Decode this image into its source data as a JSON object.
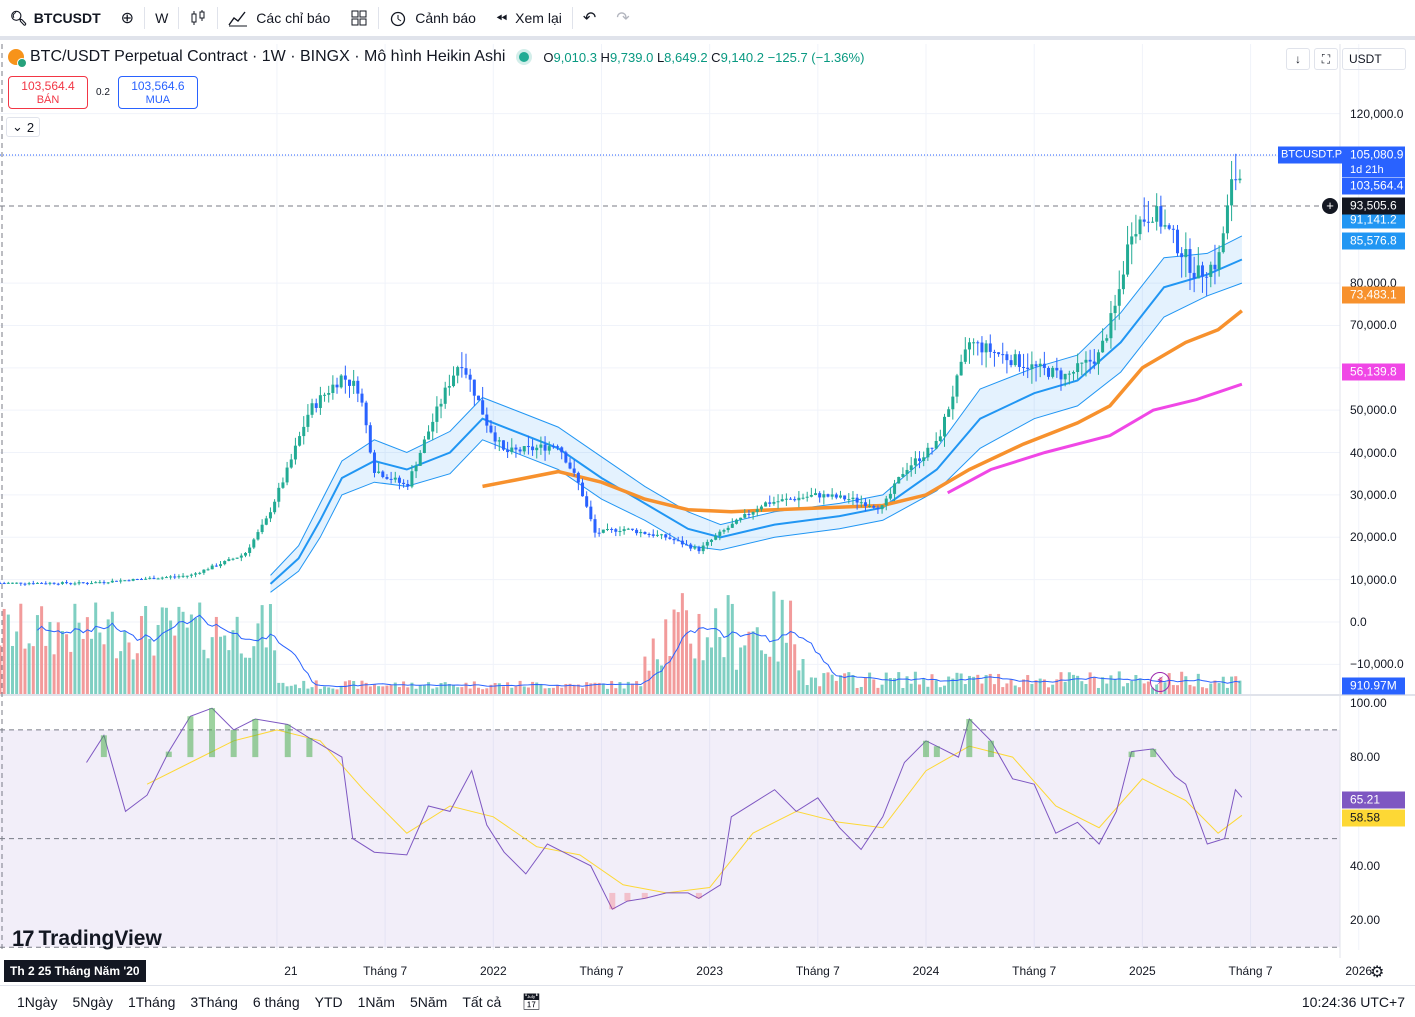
{
  "toolbar": {
    "symbol": "BTCUSDT",
    "interval": "W",
    "indicators_label": "Các chỉ báo",
    "alert_label": "Cảnh báo",
    "replay_label": "Xem lại"
  },
  "legend": {
    "title": "BTC/USDT Perpetual Contract · 1W · BINGX · Mô hình Heikin Ashi",
    "o_label": "O",
    "o_value": "9,010.3",
    "h_label": "H",
    "h_value": "9,739.0",
    "l_label": "L",
    "l_value": "8,649.2",
    "c_label": "C",
    "c_value": "9,140.2",
    "change": "−125.7 (−1.36%)",
    "bid_price": "103,564.4",
    "bid_label": "BÁN",
    "spread": "0.2",
    "ask_price": "103,564.6",
    "ask_label": "MUA",
    "collapse_count": "2",
    "currency": "USDT"
  },
  "price_labels": {
    "symbol_tag": "BTCUSDT.P",
    "last_price": "105,080.9",
    "countdown": "1d 21h",
    "bid_line": "103,564.4",
    "crosshair": "93,505.6",
    "bb_upper": "91,141.2",
    "bb_mid": "85,576.8",
    "ma_orange": "73,483.1",
    "ma_pink": "56,139.8",
    "volume": "910.97M",
    "rsi": "65.21",
    "rsi_ma": "58.58"
  },
  "colors": {
    "up": "#22ab94",
    "down": "#2962ff",
    "bb_band": "#2196f3",
    "ma_orange": "#f7912d",
    "ma_pink": "#f047e6",
    "rsi_line": "#7e57c2",
    "rsi_ma": "#fdd835",
    "vol_up": "#7fcfc2",
    "vol_down": "#f29b9b"
  },
  "chart_data": [
    {
      "type": "candlestick",
      "title": "BTC/USDT Perpetual Contract · 1W · BINGX · Mô hình Heikin Ashi",
      "y_ticks": [
        "120,000.0",
        "110,000.0",
        "80,000.0",
        "70,000.0",
        "60,000.0",
        "50,000.0",
        "40,000.0",
        "30,000.0",
        "20,000.0",
        "10,000.0",
        "0.0",
        "−10,000.0"
      ],
      "y_tick_values": [
        120000,
        110000,
        80000,
        70000,
        60000,
        50000,
        40000,
        30000,
        20000,
        10000,
        0,
        -10000
      ],
      "ylim": [
        -17000,
        127000
      ],
      "x_ticks": [
        "21",
        "Tháng 7",
        "2022",
        "Tháng 7",
        "2023",
        "Tháng 7",
        "2024",
        "Tháng 7",
        "2025",
        "Tháng 7",
        "2026"
      ],
      "x_tick_values": [
        2021.0,
        2021.5,
        2022.0,
        2022.5,
        2023.0,
        2023.5,
        2024.0,
        2024.5,
        2025.0,
        2025.5,
        2026.0
      ],
      "xlim": [
        2019.72,
        2026.26
      ],
      "price_path": [
        [
          2020.12,
          9200
        ],
        [
          2020.6,
          11000
        ],
        [
          2020.85,
          16000
        ],
        [
          2020.95,
          24000
        ],
        [
          2021.05,
          36000
        ],
        [
          2021.15,
          50000
        ],
        [
          2021.3,
          58000
        ],
        [
          2021.38,
          55000
        ],
        [
          2021.45,
          36000
        ],
        [
          2021.6,
          32000
        ],
        [
          2021.7,
          45000
        ],
        [
          2021.8,
          57000
        ],
        [
          2021.85,
          62000
        ],
        [
          2021.9,
          56000
        ],
        [
          2021.97,
          47000
        ],
        [
          2022.05,
          40000
        ],
        [
          2022.2,
          41000
        ],
        [
          2022.3,
          42000
        ],
        [
          2022.4,
          32000
        ],
        [
          2022.47,
          21000
        ],
        [
          2022.6,
          22000
        ],
        [
          2022.8,
          20000
        ],
        [
          2022.95,
          17000
        ],
        [
          2023.05,
          21000
        ],
        [
          2023.25,
          28000
        ],
        [
          2023.5,
          30000
        ],
        [
          2023.65,
          29000
        ],
        [
          2023.8,
          27000
        ],
        [
          2023.9,
          36000
        ],
        [
          2024.05,
          42000
        ],
        [
          2024.2,
          66000
        ],
        [
          2024.3,
          64000
        ],
        [
          2024.5,
          60000
        ],
        [
          2024.65,
          58000
        ],
        [
          2024.8,
          63000
        ],
        [
          2024.88,
          75000
        ],
        [
          2024.95,
          93000
        ],
        [
          2025.05,
          97000
        ],
        [
          2025.15,
          90000
        ],
        [
          2025.25,
          82000
        ],
        [
          2025.35,
          85000
        ],
        [
          2025.42,
          105000
        ],
        [
          2025.46,
          105080
        ]
      ],
      "bb_mid": [
        [
          2020.97,
          9000
        ],
        [
          2021.1,
          15000
        ],
        [
          2021.2,
          24000
        ],
        [
          2021.3,
          34000
        ],
        [
          2021.45,
          38000
        ],
        [
          2021.6,
          36000
        ],
        [
          2021.8,
          40000
        ],
        [
          2021.95,
          48000
        ],
        [
          2022.15,
          44000
        ],
        [
          2022.3,
          41000
        ],
        [
          2022.5,
          34000
        ],
        [
          2022.7,
          28000
        ],
        [
          2022.9,
          22000
        ],
        [
          2023.05,
          20000
        ],
        [
          2023.3,
          23000
        ],
        [
          2023.6,
          25000
        ],
        [
          2023.8,
          27000
        ],
        [
          2024.05,
          36000
        ],
        [
          2024.25,
          48000
        ],
        [
          2024.5,
          54000
        ],
        [
          2024.7,
          57000
        ],
        [
          2024.9,
          66000
        ],
        [
          2025.1,
          79000
        ],
        [
          2025.3,
          82000
        ],
        [
          2025.46,
          85576.8
        ]
      ],
      "bb_upper": [
        [
          2020.97,
          11000
        ],
        [
          2021.1,
          18000
        ],
        [
          2021.2,
          28000
        ],
        [
          2021.3,
          38000
        ],
        [
          2021.45,
          43000
        ],
        [
          2021.6,
          40000
        ],
        [
          2021.8,
          45000
        ],
        [
          2021.95,
          53000
        ],
        [
          2022.15,
          49000
        ],
        [
          2022.3,
          46000
        ],
        [
          2022.5,
          39000
        ],
        [
          2022.7,
          32000
        ],
        [
          2022.9,
          26000
        ],
        [
          2023.05,
          23000
        ],
        [
          2023.3,
          26000
        ],
        [
          2023.6,
          28000
        ],
        [
          2023.8,
          30000
        ],
        [
          2024.05,
          41000
        ],
        [
          2024.25,
          55000
        ],
        [
          2024.5,
          60000
        ],
        [
          2024.7,
          63000
        ],
        [
          2024.9,
          73000
        ],
        [
          2025.1,
          86000
        ],
        [
          2025.3,
          87000
        ],
        [
          2025.46,
          91141.2
        ]
      ],
      "bb_lower": [
        [
          2020.97,
          7000
        ],
        [
          2021.1,
          12000
        ],
        [
          2021.2,
          20000
        ],
        [
          2021.3,
          30000
        ],
        [
          2021.45,
          33000
        ],
        [
          2021.6,
          32000
        ],
        [
          2021.8,
          35000
        ],
        [
          2021.95,
          43000
        ],
        [
          2022.15,
          39000
        ],
        [
          2022.3,
          36000
        ],
        [
          2022.5,
          29000
        ],
        [
          2022.7,
          24000
        ],
        [
          2022.9,
          18000
        ],
        [
          2023.05,
          17000
        ],
        [
          2023.3,
          20000
        ],
        [
          2023.6,
          22000
        ],
        [
          2023.8,
          24000
        ],
        [
          2024.05,
          31000
        ],
        [
          2024.25,
          41000
        ],
        [
          2024.5,
          48000
        ],
        [
          2024.7,
          51000
        ],
        [
          2024.9,
          59000
        ],
        [
          2025.1,
          72000
        ],
        [
          2025.3,
          77000
        ],
        [
          2025.46,
          80000
        ]
      ],
      "ma_orange": [
        [
          2021.95,
          32000
        ],
        [
          2022.1,
          33500
        ],
        [
          2022.3,
          35500
        ],
        [
          2022.5,
          33000
        ],
        [
          2022.7,
          29000
        ],
        [
          2022.9,
          26500
        ],
        [
          2023.1,
          26000
        ],
        [
          2023.3,
          26500
        ],
        [
          2023.55,
          27000
        ],
        [
          2023.8,
          27500
        ],
        [
          2024.0,
          30000
        ],
        [
          2024.2,
          36000
        ],
        [
          2024.45,
          42000
        ],
        [
          2024.7,
          47000
        ],
        [
          2024.85,
          51000
        ],
        [
          2025.0,
          60000
        ],
        [
          2025.2,
          66000
        ],
        [
          2025.35,
          69000
        ],
        [
          2025.46,
          73483.1
        ]
      ],
      "ma_pink": [
        [
          2024.1,
          30500
        ],
        [
          2024.3,
          36000
        ],
        [
          2024.55,
          40000
        ],
        [
          2024.85,
          44000
        ],
        [
          2025.05,
          50000
        ],
        [
          2025.25,
          52500
        ],
        [
          2025.46,
          56139.8
        ]
      ]
    },
    {
      "type": "bar",
      "title": "Volume",
      "series": [
        {
          "name": "volume",
          "values": "derived per week, latest 910.97M"
        }
      ]
    },
    {
      "type": "line",
      "title": "RSI",
      "y_ticks": [
        "100.00",
        "80.00",
        "40.00",
        "20.00"
      ],
      "y_tick_values": [
        100,
        80,
        40,
        20
      ],
      "ylim": [
        9,
        101
      ],
      "bands": [
        90,
        50,
        10
      ],
      "rsi": [
        [
          2020.12,
          78
        ],
        [
          2020.2,
          88
        ],
        [
          2020.3,
          60
        ],
        [
          2020.4,
          66
        ],
        [
          2020.5,
          82
        ],
        [
          2020.6,
          95
        ],
        [
          2020.7,
          98
        ],
        [
          2020.8,
          90
        ],
        [
          2020.9,
          94
        ],
        [
          2021.05,
          92
        ],
        [
          2021.15,
          87
        ],
        [
          2021.3,
          80
        ],
        [
          2021.35,
          50
        ],
        [
          2021.45,
          45
        ],
        [
          2021.6,
          44
        ],
        [
          2021.7,
          62
        ],
        [
          2021.8,
          60
        ],
        [
          2021.9,
          75
        ],
        [
          2021.97,
          55
        ],
        [
          2022.05,
          45
        ],
        [
          2022.15,
          37
        ],
        [
          2022.25,
          48
        ],
        [
          2022.35,
          44
        ],
        [
          2022.45,
          40
        ],
        [
          2022.5,
          32
        ],
        [
          2022.55,
          24
        ],
        [
          2022.62,
          27
        ],
        [
          2022.7,
          28
        ],
        [
          2022.8,
          30
        ],
        [
          2022.9,
          30
        ],
        [
          2022.95,
          28
        ],
        [
          2023.05,
          33
        ],
        [
          2023.1,
          58
        ],
        [
          2023.2,
          63
        ],
        [
          2023.3,
          68
        ],
        [
          2023.4,
          60
        ],
        [
          2023.5,
          65
        ],
        [
          2023.6,
          54
        ],
        [
          2023.7,
          46
        ],
        [
          2023.8,
          58
        ],
        [
          2023.9,
          78
        ],
        [
          2024.0,
          86
        ],
        [
          2024.05,
          84
        ],
        [
          2024.15,
          80
        ],
        [
          2024.2,
          94
        ],
        [
          2024.3,
          86
        ],
        [
          2024.4,
          72
        ],
        [
          2024.5,
          70
        ],
        [
          2024.6,
          52
        ],
        [
          2024.7,
          56
        ],
        [
          2024.8,
          48
        ],
        [
          2024.88,
          60
        ],
        [
          2024.95,
          82
        ],
        [
          2025.05,
          83
        ],
        [
          2025.15,
          73
        ],
        [
          2025.2,
          70
        ],
        [
          2025.3,
          48
        ],
        [
          2025.38,
          50
        ],
        [
          2025.43,
          68
        ],
        [
          2025.46,
          65.21
        ]
      ],
      "rsi_ma": [
        [
          2020.4,
          70
        ],
        [
          2020.6,
          78
        ],
        [
          2020.8,
          86
        ],
        [
          2021.0,
          90
        ],
        [
          2021.2,
          86
        ],
        [
          2021.4,
          68
        ],
        [
          2021.6,
          52
        ],
        [
          2021.8,
          62
        ],
        [
          2022.0,
          58
        ],
        [
          2022.2,
          47
        ],
        [
          2022.4,
          44
        ],
        [
          2022.6,
          33
        ],
        [
          2022.8,
          30
        ],
        [
          2023.0,
          32
        ],
        [
          2023.2,
          52
        ],
        [
          2023.4,
          60
        ],
        [
          2023.6,
          56
        ],
        [
          2023.8,
          54
        ],
        [
          2024.0,
          75
        ],
        [
          2024.2,
          84
        ],
        [
          2024.4,
          80
        ],
        [
          2024.6,
          62
        ],
        [
          2024.8,
          54
        ],
        [
          2025.0,
          72
        ],
        [
          2025.2,
          64
        ],
        [
          2025.35,
          52
        ],
        [
          2025.46,
          58.58
        ]
      ]
    }
  ],
  "bottombar": {
    "ranges": [
      "1Ngày",
      "5Ngày",
      "1Tháng",
      "3Tháng",
      "6 tháng",
      "YTD",
      "1Năm",
      "5Năm",
      "Tất cả"
    ],
    "clock": "10:24:36 UTC+7",
    "date_tag": "Th 2 25 Tháng Năm '20"
  },
  "branding": {
    "logo_text": "TradingView"
  }
}
